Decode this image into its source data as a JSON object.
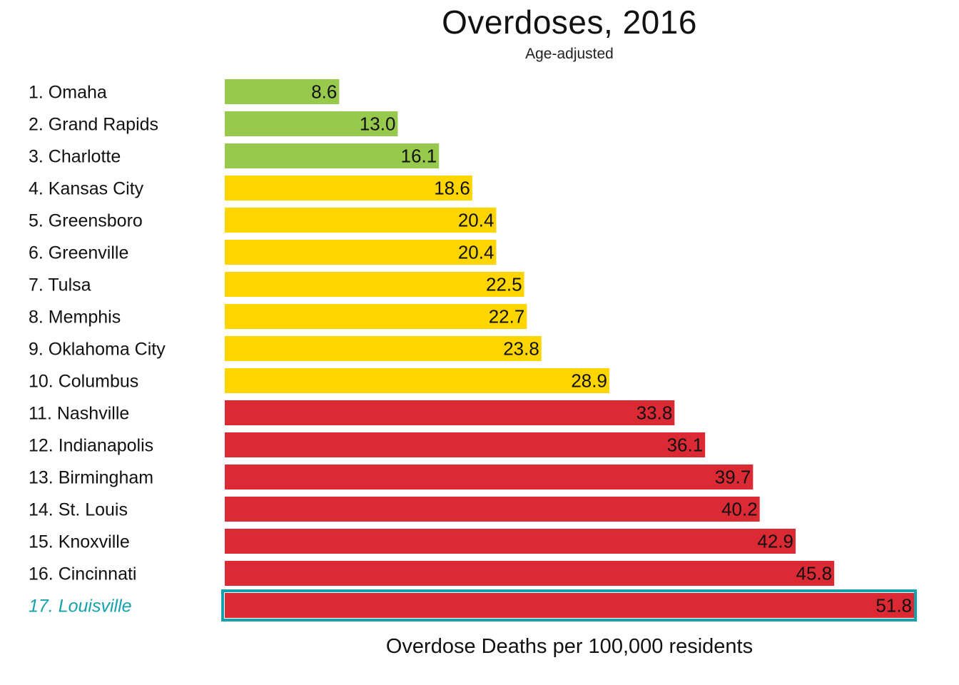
{
  "chart_data": {
    "type": "bar",
    "orientation": "horizontal",
    "title": "Overdoses, 2016",
    "subtitle": "Age-adjusted",
    "xlabel": "Overdose Deaths per 100,000 residents",
    "ylabel": "",
    "xlim": [
      0,
      51.8
    ],
    "grid": false,
    "categories": [
      "1. Omaha",
      "2. Grand Rapids",
      "3. Charlotte",
      "4. Kansas City",
      "5. Greensboro",
      "6. Greenville",
      "7. Tulsa",
      "8. Memphis",
      "9. Oklahoma City",
      "10. Columbus",
      "11. Nashville",
      "12. Indianapolis",
      "13. Birmingham",
      "14. St. Louis",
      "15. Knoxville",
      "16. Cincinnati",
      "17. Louisville"
    ],
    "values": [
      8.6,
      13.0,
      16.1,
      18.6,
      20.4,
      20.4,
      22.5,
      22.7,
      23.8,
      28.9,
      33.8,
      36.1,
      39.7,
      40.2,
      42.9,
      45.8,
      51.8
    ],
    "value_labels": [
      "8.6",
      "13.0",
      "16.1",
      "18.6",
      "20.4",
      "20.4",
      "22.5",
      "22.7",
      "23.8",
      "28.9",
      "33.8",
      "36.1",
      "39.7",
      "40.2",
      "42.9",
      "45.8",
      "51.8"
    ],
    "tiers": [
      "green",
      "green",
      "green",
      "yellow",
      "yellow",
      "yellow",
      "yellow",
      "yellow",
      "yellow",
      "yellow",
      "red",
      "red",
      "red",
      "red",
      "red",
      "red",
      "red"
    ],
    "colors": {
      "green": "#97c94d",
      "yellow": "#ffd500",
      "red": "#dc2a34",
      "highlight": "#16a2ad",
      "label": "#111111",
      "value_text": "#111111"
    },
    "highlight_index": 16
  }
}
